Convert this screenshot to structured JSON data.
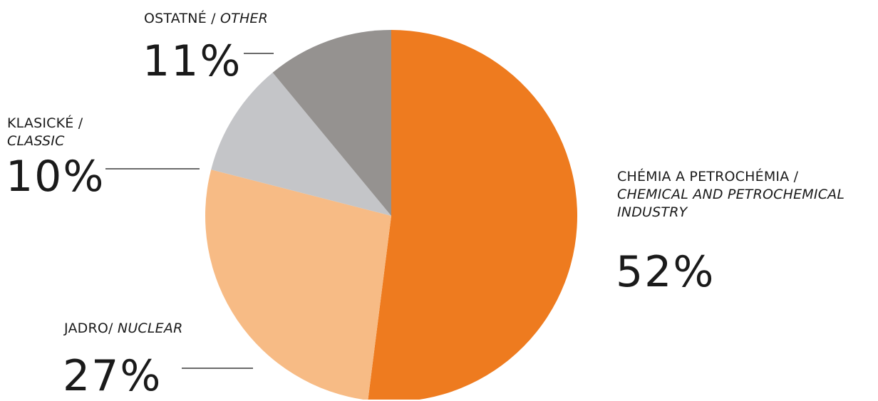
{
  "chart_data": {
    "type": "pie",
    "title": "",
    "start_angle_deg": 0,
    "direction": "clockwise",
    "slices": [
      {
        "id": "chem",
        "label_sk": "CHÉMIA A PETROCHÉMIA /",
        "label_en": [
          "CHEMICAL AND PETROCHEMICAL",
          "INDUSTRY"
        ],
        "value": 52,
        "display": "52%",
        "color": "#ee7b1f"
      },
      {
        "id": "nuclear",
        "label_sk": "JADRO/",
        "label_en": [
          "NUCLEAR"
        ],
        "value": 27,
        "display": "27%",
        "color": "#f7bb85"
      },
      {
        "id": "classic",
        "label_sk": "KLASICKÉ /",
        "label_en": [
          "CLASSIC"
        ],
        "value": 10,
        "display": "10%",
        "color": "#c4c5c8"
      },
      {
        "id": "other",
        "label_sk": "OSTATNÉ /",
        "label_en": [
          "OTHER"
        ],
        "value": 11,
        "display": "11%",
        "color": "#959290"
      }
    ]
  }
}
